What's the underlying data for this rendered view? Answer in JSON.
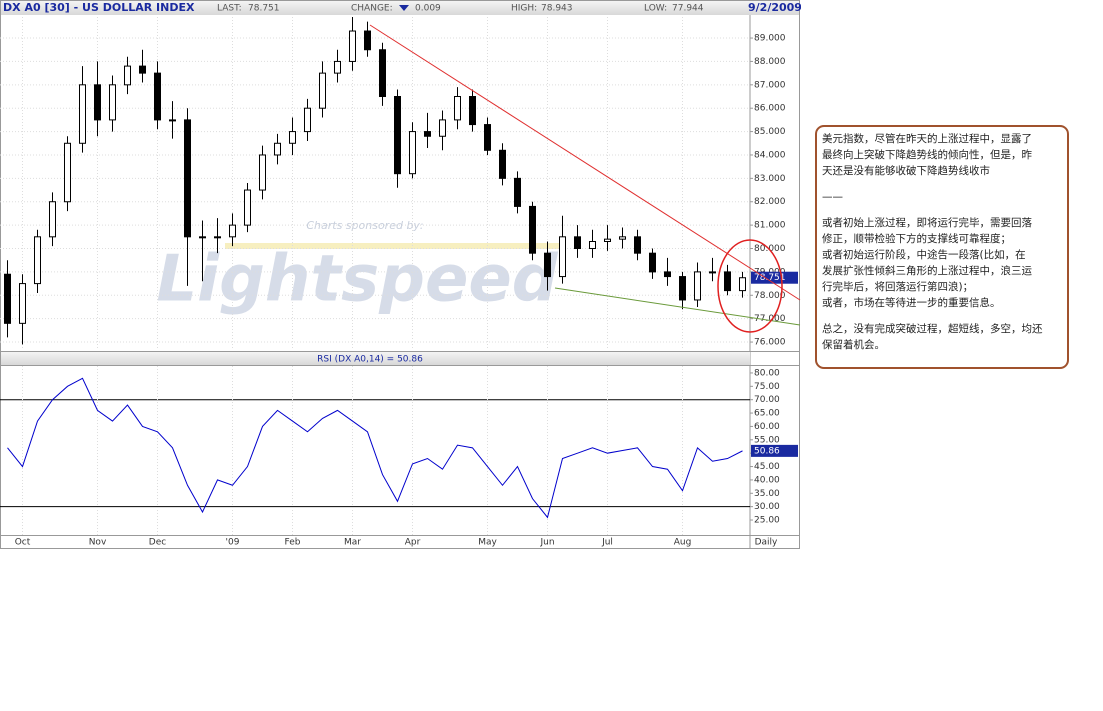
{
  "chart_data": {
    "type": "candlestick",
    "header": {
      "title": "DX A0 [30] - US DOLLAR INDEX",
      "last_label": "LAST:",
      "last": 78.751,
      "change_label": "CHANGE:",
      "change": 0.009,
      "high_label": "HIGH:",
      "high": 78.943,
      "low_label": "LOW:",
      "low": 77.944,
      "date": "9/2/2009"
    },
    "watermark": {
      "sponsor": "Charts sponsored by:",
      "brand": "Lightspeed"
    },
    "categories": [
      "",
      "Oct",
      null,
      null,
      null,
      null,
      "Nov",
      null,
      null,
      null,
      "Dec",
      null,
      null,
      null,
      null,
      "'09",
      null,
      null,
      null,
      "Feb",
      null,
      null,
      null,
      "Mar",
      null,
      null,
      null,
      "Apr",
      null,
      null,
      null,
      null,
      "May",
      null,
      null,
      null,
      "Jun",
      null,
      null,
      null,
      "Jul",
      null,
      null,
      null,
      null,
      "Aug",
      null,
      null,
      null,
      null
    ],
    "frequency": "Daily",
    "open": [
      78.9,
      76.8,
      78.5,
      80.5,
      82,
      84.5,
      87,
      85.5,
      87,
      87.8,
      87.5,
      85.5,
      85.5,
      80.5,
      80.5,
      80.5,
      81,
      82.5,
      84,
      84.5,
      85,
      86,
      87.5,
      88,
      89.3,
      88.5,
      86.5,
      83.2,
      85,
      84.8,
      85.5,
      86.5,
      85.3,
      84.2,
      83,
      81.8,
      79.8,
      78.8,
      80.5,
      80,
      80.3,
      80.4,
      80.5,
      79.8,
      79,
      78.8,
      77.8,
      79,
      79,
      78.2
    ],
    "high": [
      79.5,
      78.9,
      80.8,
      82.4,
      84.8,
      87.8,
      88,
      87.4,
      88.2,
      88.5,
      88,
      86.3,
      86,
      81.2,
      81.3,
      81.5,
      82.8,
      84.4,
      84.9,
      85.6,
      86.4,
      88,
      88.5,
      89.9,
      89.7,
      88.8,
      86.8,
      85.4,
      85.8,
      85.9,
      86.9,
      86.8,
      85.6,
      84.5,
      83.3,
      82,
      80.3,
      81.4,
      81,
      80.8,
      81,
      80.9,
      80.8,
      80,
      79.6,
      79,
      79.4,
      79.6,
      79.3,
      79
    ],
    "low": [
      76.2,
      75.9,
      78.1,
      80.1,
      81.6,
      84.1,
      84.8,
      85,
      86.6,
      87.1,
      85.1,
      84.7,
      78.4,
      78.6,
      79.8,
      80.1,
      80.7,
      82.1,
      83.6,
      84,
      84.6,
      85.6,
      87.1,
      87.6,
      88.2,
      86.1,
      82.6,
      83,
      84.3,
      84.2,
      85.1,
      85,
      84,
      82.7,
      81.5,
      79.5,
      78.2,
      78.5,
      79.6,
      79.6,
      79.9,
      80,
      79.5,
      78.7,
      78.4,
      77.4,
      77.5,
      78.6,
      78,
      77.9
    ],
    "close": [
      76.8,
      78.5,
      80.5,
      82,
      84.5,
      87,
      85.5,
      87,
      87.8,
      87.5,
      85.5,
      85.5,
      80.5,
      80.5,
      80.5,
      81,
      82.5,
      84,
      84.5,
      85,
      86,
      87.5,
      88,
      89.3,
      88.5,
      86.5,
      83.2,
      85,
      84.8,
      85.5,
      86.5,
      85.3,
      84.2,
      83,
      81.8,
      79.8,
      78.8,
      80.5,
      80,
      80.3,
      80.4,
      80.5,
      79.8,
      79,
      78.8,
      77.8,
      79,
      79,
      78.2,
      78.75
    ],
    "color": "#000000",
    "grid": true,
    "ylim": [
      75.66,
      89.9
    ],
    "yticks": [
      {
        "value": 76,
        "label": "76.000"
      },
      {
        "value": 77,
        "label": "77.000"
      },
      {
        "value": 78,
        "label": "78.000"
      },
      {
        "value": 79,
        "label": "79.000"
      },
      {
        "value": 80,
        "label": "80.000"
      },
      {
        "value": 81,
        "label": "81.000"
      },
      {
        "value": 82,
        "label": "82.000"
      },
      {
        "value": 83,
        "label": "83.000"
      },
      {
        "value": 84,
        "label": "84.000"
      },
      {
        "value": 85,
        "label": "85.000"
      },
      {
        "value": 86,
        "label": "86.000"
      },
      {
        "value": 87,
        "label": "87.000"
      },
      {
        "value": 88,
        "label": "88.000"
      },
      {
        "value": 89,
        "label": "89.000"
      }
    ],
    "rsi": {
      "title": "RSI (DX A0,14) = 50.86",
      "color": "#0000cc",
      "values": [
        52,
        45,
        62,
        70,
        75,
        78,
        66,
        62,
        68,
        60,
        58,
        52,
        38,
        28,
        40,
        38,
        45,
        60,
        66,
        62,
        58,
        63,
        66,
        62,
        58,
        42,
        32,
        46,
        48,
        44,
        53,
        52,
        45,
        38,
        45,
        33,
        26,
        48,
        50,
        52,
        50,
        51,
        52,
        45,
        44,
        36,
        52,
        47,
        48,
        50.86
      ],
      "value_labels": [
        null,
        null,
        null,
        null,
        null,
        null,
        null,
        null,
        null,
        null,
        null,
        null,
        null,
        null,
        null,
        null,
        null,
        null,
        null,
        null,
        null,
        null,
        null,
        null,
        null,
        null,
        null,
        null,
        null,
        null,
        null,
        null,
        null,
        null,
        null,
        null,
        null,
        null,
        null,
        null,
        null,
        null,
        null,
        null,
        null,
        null,
        null,
        null,
        null,
        "50.86"
      ],
      "ylim": [
        19.4,
        82.6
      ],
      "levels": [
        70,
        30
      ],
      "yticks": [
        {
          "value": 25,
          "label": "25.00"
        },
        {
          "value": 30,
          "label": "30.00"
        },
        {
          "value": 35,
          "label": "35.00"
        },
        {
          "value": 40,
          "label": "40.00"
        },
        {
          "value": 45,
          "label": "45.00"
        },
        {
          "value": 50,
          "label": "50.00"
        },
        {
          "value": 55,
          "label": "55.00"
        },
        {
          "value": 60,
          "label": "60.00"
        },
        {
          "value": 65,
          "label": "65.00"
        },
        {
          "value": 70,
          "label": "70.00"
        },
        {
          "value": 75,
          "label": "75.00"
        },
        {
          "value": 80,
          "label": "80.00"
        }
      ]
    }
  },
  "note": {
    "paragraphs": [
      [
        "美元指数，尽管在昨天的上涨过程中，显露了",
        "最终向上突破下降趋势线的倾向性，但是，昨",
        "天还是没有能够收破下降趋势线收市"
      ],
      [
        "——"
      ],
      [
        "或者初始上涨过程，即将运行完毕，需要回落",
        "修正，顺带检验下方的支撑线可靠程度；",
        "或者初始运行阶段，中途告一段落(比如，在",
        "发展扩张性倾斜三角形的上涨过程中，浪三运",
        "行完毕后，将回落运行第四浪)；",
        "或者，市场在等待进一步的重要信息。"
      ],
      [
        "总之，没有完成突破过程，超短线，多空，均还",
        "保留着机会。"
      ]
    ]
  }
}
